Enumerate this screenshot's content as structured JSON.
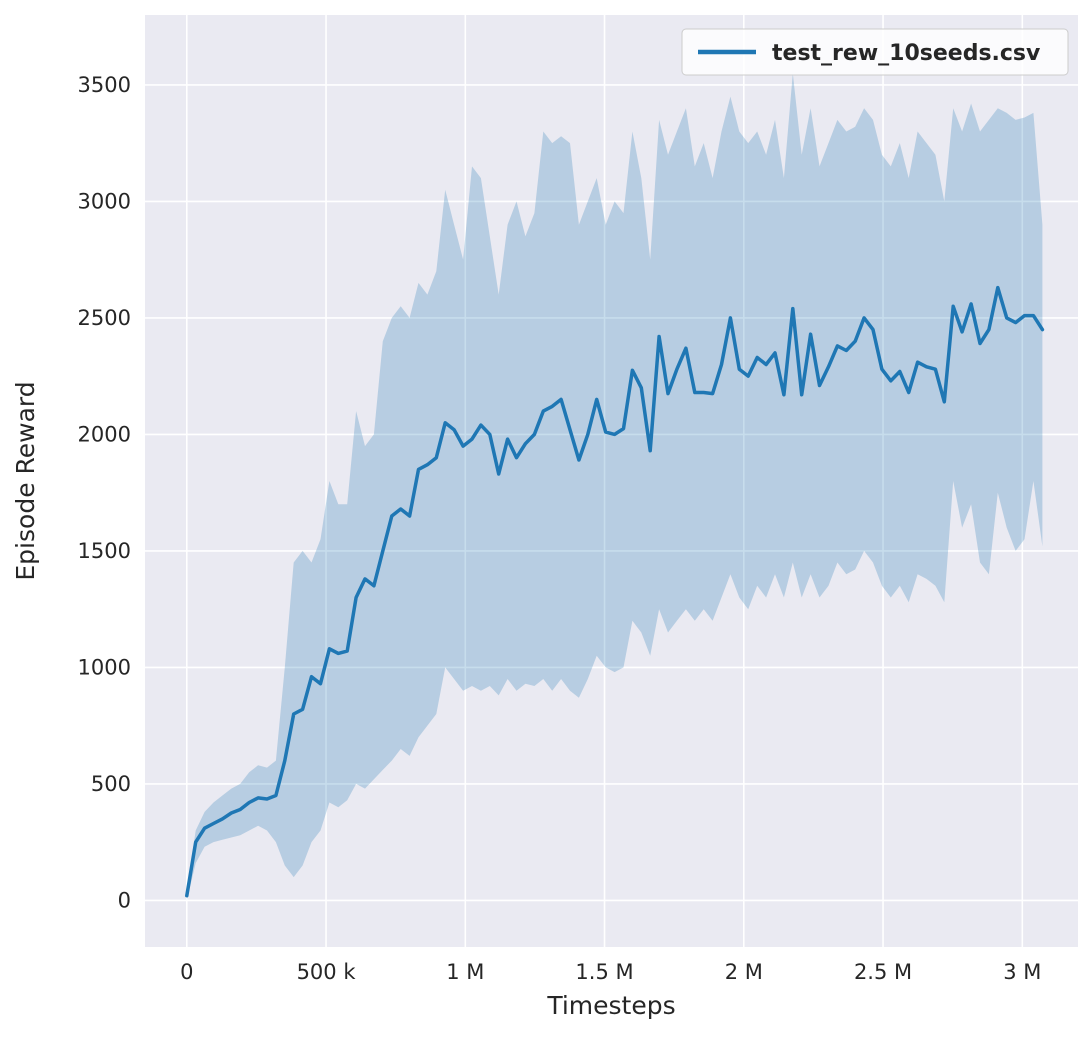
{
  "colors": {
    "figure_bg": "#ffffff",
    "plot_bg": "#eaeaf2",
    "grid": "#ffffff",
    "line": "#1f77b4",
    "band": "#1f77b4",
    "band_opacity": 0.25,
    "text": "#262626",
    "legend_bg": "rgba(255,255,255,0.8)",
    "legend_border": "#cccccc"
  },
  "chart_data": {
    "type": "line",
    "title": "",
    "xlabel": "Timesteps",
    "ylabel": "Episode Reward",
    "legend_position": "upper right",
    "grid": true,
    "xlim": [
      -150000,
      3200000
    ],
    "ylim": [
      -200,
      3800
    ],
    "xticks": {
      "values": [
        0,
        500000,
        1000000,
        1500000,
        2000000,
        2500000,
        3000000
      ],
      "labels": [
        "0",
        "500 k",
        "1 M",
        "1.5 M",
        "2 M",
        "2.5 M",
        "3 M"
      ]
    },
    "yticks": {
      "values": [
        0,
        500,
        1000,
        1500,
        2000,
        2500,
        3000,
        3500
      ],
      "labels": [
        "0",
        "500",
        "1000",
        "1500",
        "2000",
        "2500",
        "3000",
        "3500"
      ]
    },
    "x": [
      0,
      32000,
      64000,
      96000,
      128000,
      160000,
      192000,
      224000,
      256000,
      288000,
      320000,
      352000,
      384000,
      416000,
      448000,
      480000,
      512000,
      544000,
      576000,
      608000,
      640000,
      672000,
      704000,
      736000,
      768000,
      800000,
      832000,
      864000,
      896000,
      928000,
      960000,
      992000,
      1024000,
      1056000,
      1088000,
      1120000,
      1152000,
      1184000,
      1216000,
      1248000,
      1280000,
      1312000,
      1344000,
      1376000,
      1408000,
      1440000,
      1472000,
      1504000,
      1536000,
      1568000,
      1600000,
      1632000,
      1664000,
      1696000,
      1728000,
      1760000,
      1792000,
      1824000,
      1856000,
      1888000,
      1920000,
      1952000,
      1984000,
      2016000,
      2048000,
      2080000,
      2112000,
      2144000,
      2176000,
      2208000,
      2240000,
      2272000,
      2304000,
      2336000,
      2368000,
      2400000,
      2432000,
      2464000,
      2496000,
      2528000,
      2560000,
      2592000,
      2624000,
      2656000,
      2688000,
      2720000,
      2752000,
      2784000,
      2816000,
      2848000,
      2880000,
      2912000,
      2944000,
      2976000,
      3008000,
      3040000,
      3072000
    ],
    "series": [
      {
        "name": "test_rew_10seeds.csv",
        "values": [
          20,
          250,
          310,
          330,
          350,
          375,
          390,
          420,
          440,
          435,
          450,
          600,
          800,
          820,
          960,
          930,
          1080,
          1060,
          1070,
          1300,
          1380,
          1350,
          1500,
          1650,
          1680,
          1650,
          1850,
          1870,
          1900,
          2050,
          2020,
          1950,
          1980,
          2040,
          2000,
          1830,
          1980,
          1900,
          1960,
          2000,
          2100,
          2120,
          2150,
          2020,
          1890,
          2000,
          2150,
          2010,
          2000,
          2025,
          2275,
          2200,
          1930,
          2420,
          2175,
          2280,
          2370,
          2180,
          2180,
          2175,
          2300,
          2500,
          2280,
          2250,
          2330,
          2300,
          2350,
          2170,
          2540,
          2170,
          2430,
          2210,
          2290,
          2380,
          2360,
          2400,
          2500,
          2450,
          2280,
          2230,
          2270,
          2180,
          2310,
          2290,
          2280,
          2140,
          2550,
          2440,
          2560,
          2390,
          2450,
          2630,
          2500,
          2480,
          2510,
          2510,
          2450
        ],
        "band_lower": [
          0,
          160,
          230,
          250,
          260,
          270,
          280,
          300,
          320,
          300,
          250,
          150,
          100,
          150,
          250,
          300,
          420,
          400,
          430,
          500,
          480,
          520,
          560,
          600,
          650,
          620,
          700,
          750,
          800,
          1000,
          950,
          900,
          920,
          900,
          920,
          880,
          950,
          900,
          930,
          920,
          950,
          900,
          950,
          900,
          870,
          950,
          1050,
          1000,
          980,
          1000,
          1200,
          1150,
          1050,
          1250,
          1150,
          1200,
          1250,
          1200,
          1250,
          1200,
          1300,
          1400,
          1300,
          1250,
          1350,
          1300,
          1400,
          1300,
          1450,
          1300,
          1400,
          1300,
          1350,
          1450,
          1400,
          1420,
          1500,
          1450,
          1350,
          1300,
          1350,
          1280,
          1400,
          1380,
          1350,
          1280,
          1800,
          1600,
          1700,
          1450,
          1400,
          1750,
          1600,
          1500,
          1550,
          1800,
          1520
        ],
        "band_upper": [
          40,
          300,
          380,
          420,
          450,
          480,
          500,
          550,
          580,
          570,
          600,
          1000,
          1450,
          1500,
          1450,
          1550,
          1800,
          1700,
          1700,
          2100,
          1950,
          2000,
          2400,
          2500,
          2550,
          2500,
          2650,
          2600,
          2700,
          3050,
          2900,
          2750,
          3150,
          3100,
          2850,
          2600,
          2900,
          3000,
          2850,
          2950,
          3300,
          3250,
          3280,
          3250,
          2900,
          3000,
          3100,
          2900,
          3000,
          2950,
          3300,
          3100,
          2750,
          3350,
          3200,
          3300,
          3400,
          3150,
          3250,
          3100,
          3300,
          3450,
          3300,
          3250,
          3300,
          3200,
          3350,
          3100,
          3550,
          3200,
          3400,
          3150,
          3250,
          3350,
          3300,
          3320,
          3400,
          3350,
          3200,
          3150,
          3250,
          3100,
          3300,
          3250,
          3200,
          3000,
          3400,
          3300,
          3420,
          3300,
          3350,
          3400,
          3380,
          3350,
          3360,
          3380,
          2900
        ]
      }
    ]
  }
}
